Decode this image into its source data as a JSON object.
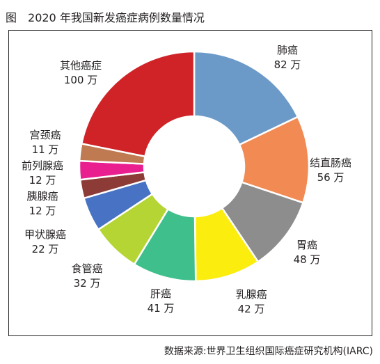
{
  "title": {
    "prefix": "图",
    "text": "2020 年我国新发癌症病例数量情况"
  },
  "source": "数据来源:世界卫生组织国际癌症研究机构(IARC)",
  "unit": "万",
  "chart_data": {
    "type": "pie",
    "variant": "donut",
    "start": "top, clockwise",
    "categories": [
      "肺癌",
      "结直肠癌",
      "胃癌",
      "乳腺癌",
      "肝癌",
      "食管癌",
      "甲状腺癌",
      "胰腺癌",
      "前列腺癌",
      "宫颈癌",
      "其他癌症"
    ],
    "values": [
      82,
      56,
      48,
      42,
      41,
      32,
      22,
      12,
      12,
      11,
      100
    ],
    "value_labels": [
      "82 万",
      "56 万",
      "48 万",
      "42 万",
      "41 万",
      "32 万",
      "22 万",
      "12 万",
      "12 万",
      "11 万",
      "100 万"
    ],
    "colors": [
      "#6b9ac9",
      "#f28a54",
      "#8d8d8d",
      "#fbed0e",
      "#3fbf8c",
      "#b5d534",
      "#4873c4",
      "#8c3b37",
      "#e91e8f",
      "#bf7a52",
      "#cf2327"
    ],
    "legend": "none (labels beside slices)"
  }
}
